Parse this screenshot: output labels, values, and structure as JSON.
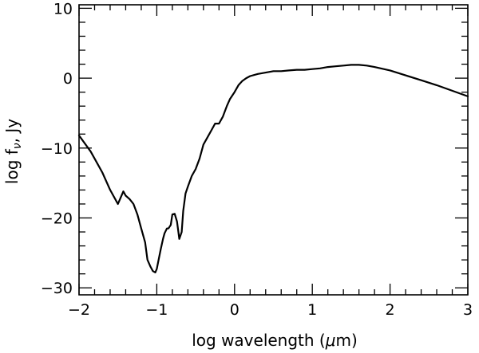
{
  "chart_data": {
    "type": "line",
    "xlabel_main": "log wavelength (",
    "xlabel_mu": "μ",
    "xlabel_end": "m)",
    "ylabel_main": "log f",
    "ylabel_sub": "ν",
    "ylabel_end": ", Jy",
    "xlim": [
      -2,
      3
    ],
    "ylim": [
      -31,
      10.5
    ],
    "xticks": [
      -2,
      -1,
      0,
      1,
      2,
      3
    ],
    "xtick_labels": [
      "−2",
      "−1",
      "0",
      "1",
      "2",
      "3"
    ],
    "yticks": [
      -30,
      -20,
      -10,
      0,
      10
    ],
    "ytick_labels": [
      "−30",
      "−20",
      "−10",
      "0",
      "10"
    ],
    "grid": false,
    "series": [
      {
        "x": [
          -2.0,
          -1.85,
          -1.7,
          -1.6,
          -1.5,
          -1.43,
          -1.4,
          -1.35,
          -1.3,
          -1.25,
          -1.2,
          -1.15,
          -1.12,
          -1.08,
          -1.05,
          -1.02,
          -1.0,
          -0.98,
          -0.95,
          -0.92,
          -0.9,
          -0.87,
          -0.85,
          -0.82,
          -0.8,
          -0.77,
          -0.74,
          -0.71,
          -0.68,
          -0.66,
          -0.63,
          -0.6,
          -0.55,
          -0.5,
          -0.45,
          -0.4,
          -0.35,
          -0.3,
          -0.25,
          -0.2,
          -0.15,
          -0.1,
          -0.06,
          -0.03,
          0.0,
          0.05,
          0.1,
          0.15,
          0.2,
          0.3,
          0.4,
          0.5,
          0.6,
          0.7,
          0.8,
          0.9,
          1.0,
          1.1,
          1.2,
          1.3,
          1.4,
          1.5,
          1.6,
          1.7,
          1.8,
          2.0,
          2.2,
          2.4,
          2.6,
          2.8,
          3.0
        ],
        "y": [
          -8.2,
          -10.5,
          -13.5,
          -16.0,
          -18.0,
          -16.2,
          -16.8,
          -17.3,
          -18.0,
          -19.5,
          -21.5,
          -23.5,
          -26.0,
          -27.0,
          -27.6,
          -27.8,
          -27.3,
          -26.2,
          -24.5,
          -23.0,
          -22.2,
          -21.5,
          -21.5,
          -21.0,
          -19.5,
          -19.4,
          -20.5,
          -23.0,
          -22.0,
          -19.0,
          -16.5,
          -15.5,
          -14.0,
          -13.0,
          -11.5,
          -9.5,
          -8.5,
          -7.5,
          -6.5,
          -6.5,
          -5.5,
          -4.0,
          -3.0,
          -2.5,
          -2.0,
          -1.0,
          -0.4,
          0.0,
          0.3,
          0.6,
          0.8,
          1.0,
          1.0,
          1.1,
          1.2,
          1.2,
          1.3,
          1.4,
          1.6,
          1.7,
          1.8,
          1.9,
          1.9,
          1.8,
          1.6,
          1.1,
          0.4,
          -0.3,
          -1.0,
          -1.8,
          -2.6
        ]
      }
    ]
  }
}
